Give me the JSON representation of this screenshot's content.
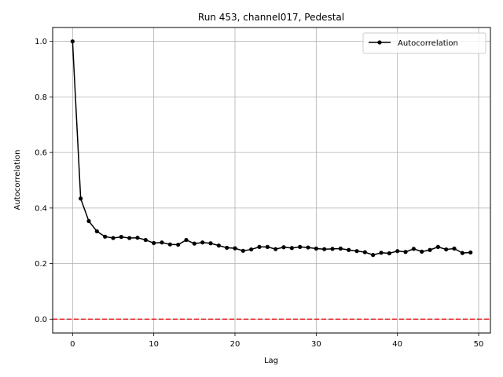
{
  "chart_data": {
    "type": "line",
    "title": "Run 453, channel017, Pedestal",
    "xlabel": "Lag",
    "ylabel": "Autocorrelation",
    "xlim": [
      -2.45,
      51.45
    ],
    "ylim": [
      -0.05,
      1.05
    ],
    "xticks": [
      0,
      10,
      20,
      30,
      40,
      50
    ],
    "yticks": [
      0.0,
      0.2,
      0.4,
      0.6,
      0.8,
      1.0
    ],
    "xtick_labels": [
      "0",
      "10",
      "20",
      "30",
      "40",
      "50"
    ],
    "ytick_labels": [
      "0.0",
      "0.2",
      "0.4",
      "0.6",
      "0.8",
      "1.0"
    ],
    "grid": true,
    "legend_position": "top-right",
    "reference_line": {
      "y": 0.0,
      "color": "#e41a1c",
      "style": "dashed"
    },
    "series": [
      {
        "name": "Autocorrelation",
        "color": "#000000",
        "marker": "circle",
        "x": [
          0,
          1,
          2,
          3,
          4,
          5,
          6,
          7,
          8,
          9,
          10,
          11,
          12,
          13,
          14,
          15,
          16,
          17,
          18,
          19,
          20,
          21,
          22,
          23,
          24,
          25,
          26,
          27,
          28,
          29,
          30,
          31,
          32,
          33,
          34,
          35,
          36,
          37,
          38,
          39,
          40,
          41,
          42,
          43,
          44,
          45,
          46,
          47,
          48,
          49
        ],
        "y": [
          1.0,
          0.434,
          0.353,
          0.316,
          0.297,
          0.292,
          0.296,
          0.292,
          0.293,
          0.285,
          0.274,
          0.276,
          0.269,
          0.268,
          0.285,
          0.272,
          0.276,
          0.273,
          0.265,
          0.257,
          0.255,
          0.246,
          0.251,
          0.26,
          0.26,
          0.252,
          0.259,
          0.256,
          0.26,
          0.258,
          0.254,
          0.252,
          0.253,
          0.254,
          0.249,
          0.245,
          0.241,
          0.231,
          0.239,
          0.237,
          0.245,
          0.242,
          0.253,
          0.243,
          0.249,
          0.26,
          0.251,
          0.254,
          0.238,
          0.24
        ]
      }
    ]
  }
}
